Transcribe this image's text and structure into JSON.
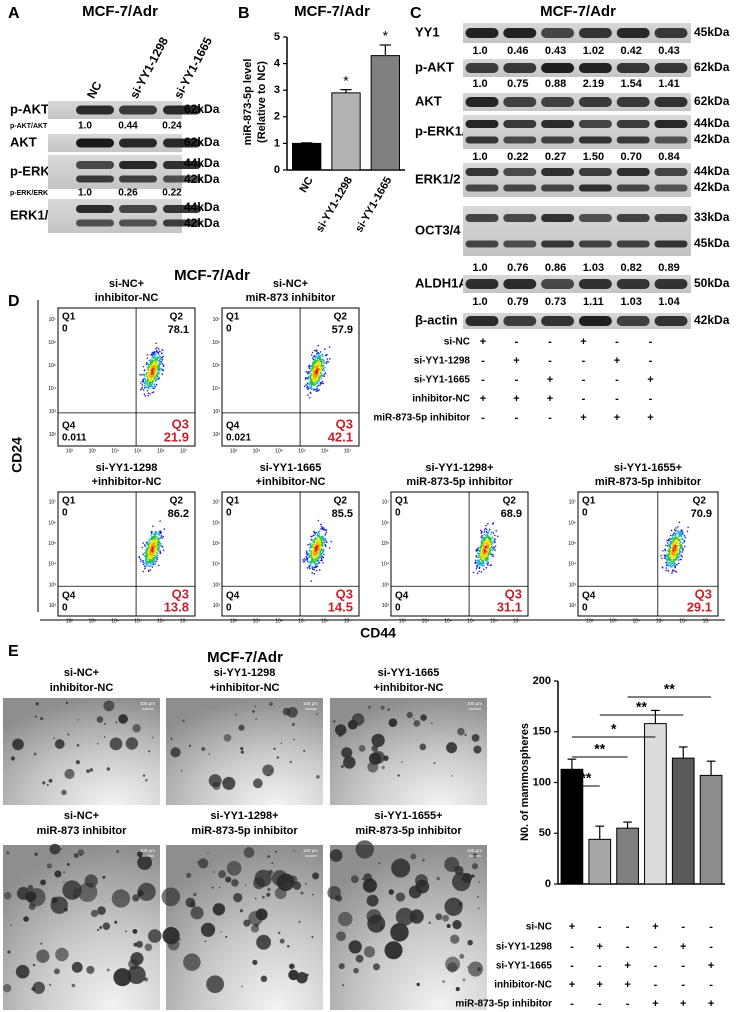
{
  "panel_a": {
    "label": "A",
    "title": "MCF-7/Adr",
    "lanes": [
      "NC",
      "si-YY1-1298",
      "si-YY1-1665"
    ],
    "rows": [
      {
        "name": "p-AKT",
        "markers": [
          "62kDa"
        ]
      },
      {
        "name": "AKT",
        "markers": [
          "62kDa"
        ]
      },
      {
        "name": "p-ERK1/2",
        "markers": [
          "44kDa",
          "42kDa"
        ]
      },
      {
        "name": "ERK1/2",
        "markers": [
          "44kDa",
          "42kDa"
        ]
      }
    ],
    "quant": [
      {
        "name": "p-AKT/AKT",
        "values": [
          "1.0",
          "0.44",
          "0.24"
        ]
      },
      {
        "name": "p-ERK/ERK",
        "values": [
          "1.0",
          "0.26",
          "0.22"
        ]
      }
    ]
  },
  "panel_c": {
    "label": "C",
    "title": "MCF-7/Adr",
    "rows": [
      {
        "name": "YY1",
        "markers": [
          "45kDa"
        ],
        "quant": [
          "1.0",
          "0.46",
          "0.43",
          "1.02",
          "0.42",
          "0.43"
        ]
      },
      {
        "name": "p-AKT",
        "markers": [
          "62kDa"
        ],
        "quant": [
          "1.0",
          "0.75",
          "0.88",
          "2.19",
          "1.54",
          "1.41"
        ]
      },
      {
        "name": "AKT",
        "markers": [
          "62kDa"
        ]
      },
      {
        "name": "p-ERK1/2",
        "markers": [
          "44kDa",
          "42kDa"
        ],
        "quant": [
          "1.0",
          "0.22",
          "0.27",
          "1.50",
          "0.70",
          "0.84"
        ]
      },
      {
        "name": "ERK1/2",
        "markers": [
          "44kDa",
          "42kDa"
        ]
      },
      {
        "name": "OCT3/4",
        "markers": [
          "33kDa",
          "45kDa"
        ],
        "quant": [
          "1.0",
          "0.76",
          "0.86",
          "1.03",
          "0.82",
          "0.89"
        ]
      },
      {
        "name": "ALDH1A1",
        "markers": [
          "50kDa"
        ],
        "quant": [
          "1.0",
          "0.79",
          "0.73",
          "1.11",
          "1.03",
          "1.04"
        ]
      },
      {
        "name": "β-actin",
        "markers": [
          "42kDa"
        ]
      }
    ],
    "conditions": [
      {
        "name": "si-NC",
        "marks": [
          "+",
          "-",
          "-",
          "+",
          "-",
          "-"
        ]
      },
      {
        "name": "si-YY1-1298",
        "marks": [
          "-",
          "+",
          "-",
          "-",
          "+",
          "-"
        ]
      },
      {
        "name": "si-YY1-1665",
        "marks": [
          "-",
          "-",
          "+",
          "-",
          "-",
          "+"
        ]
      },
      {
        "name": "inhibitor-NC",
        "marks": [
          "+",
          "+",
          "+",
          "-",
          "-",
          "-"
        ]
      },
      {
        "name": "miR-873-5p inhibitor",
        "marks": [
          "-",
          "-",
          "-",
          "+",
          "+",
          "+"
        ]
      }
    ]
  },
  "panel_d": {
    "label": "D",
    "title": "MCF-7/Adr",
    "y_label": "CD24",
    "x_label": "CD44",
    "axis_ticks": [
      "10²",
      "10³",
      "10⁴",
      "10⁵",
      "10⁶",
      "10⁷"
    ],
    "quadrant_names": [
      "Q1",
      "Q2",
      "Q3",
      "Q4"
    ],
    "plots": [
      {
        "title": [
          "si-NC+",
          "inhibitor-NC"
        ],
        "values": [
          0,
          78.1,
          21.9,
          0.011
        ]
      },
      {
        "title": [
          "si-NC+",
          "miR-873 inhibitor"
        ],
        "values": [
          0,
          57.9,
          42.1,
          0.021
        ]
      },
      {
        "title": [
          "si-YY1-1298",
          "+inhibitor-NC"
        ],
        "values": [
          0,
          86.2,
          13.8,
          0
        ]
      },
      {
        "title": [
          "si-YY1-1665",
          "+inhibitor-NC"
        ],
        "values": [
          0,
          85.5,
          14.5,
          0
        ]
      },
      {
        "title": [
          "si-YY1-1298+",
          "miR-873-5p inhibitor"
        ],
        "values": [
          0,
          68.9,
          31.1,
          0
        ]
      },
      {
        "title": [
          "si-YY1-1655+",
          "miR-873-5p inhibitor"
        ],
        "values": [
          0,
          70.9,
          29.1,
          0
        ]
      }
    ]
  },
  "panel_e": {
    "label": "E",
    "title": "MCF-7/Adr",
    "scale_label": "100 μm",
    "images": [
      {
        "caption": [
          "si-NC+",
          "inhibitor-NC"
        ]
      },
      {
        "caption": [
          "si-YY1-1298",
          "+inhibitor-NC"
        ]
      },
      {
        "caption": [
          "si-YY1-1665",
          "+inhibitor-NC"
        ]
      },
      {
        "caption": [
          "si-NC+",
          "miR-873 inhibitor"
        ]
      },
      {
        "caption": [
          "si-YY1-1298+",
          "miR-873-5p inhibitor"
        ]
      },
      {
        "caption": [
          "si-YY1-1655+",
          "miR-873-5p inhibitor"
        ]
      }
    ]
  },
  "chart_data": [
    {
      "type": "bar",
      "panel_label": "B",
      "title": "MCF-7/Adr",
      "y_label": [
        "miR-873-5p  level",
        "(Relative to NC)"
      ],
      "categories": [
        "NC",
        "si-YY1-1298",
        "si-YY1-1665"
      ],
      "values": [
        1.0,
        2.9,
        4.3
      ],
      "errors": [
        0.02,
        0.12,
        0.4
      ],
      "colors": [
        "#000000",
        "#b3b3b3",
        "#808080"
      ],
      "ylim": [
        0,
        5
      ],
      "yticks": [
        0,
        1,
        2,
        3,
        4,
        5
      ],
      "annotations": [
        "*",
        "*"
      ]
    },
    {
      "type": "bar",
      "y_label": "N0. of mammospheres",
      "categories": [
        null,
        null,
        null,
        null,
        null,
        null
      ],
      "values": [
        113,
        44,
        55,
        158,
        124,
        107
      ],
      "errors": [
        10,
        13,
        6,
        13,
        11,
        14
      ],
      "colors": [
        "#000000",
        "#a6a6a6",
        "#808080",
        "#dcdcdc",
        "#595959",
        "#8c8c8c"
      ],
      "ylim": [
        0,
        200
      ],
      "yticks": [
        0,
        50,
        100,
        150,
        200
      ],
      "annotations": [
        "**",
        "**",
        "*",
        "**",
        "**"
      ],
      "conditions": [
        {
          "name": "si-NC",
          "marks": [
            "+",
            "-",
            "-",
            "+",
            "-",
            "-"
          ]
        },
        {
          "name": "si-YY1-1298",
          "marks": [
            "-",
            "+",
            "-",
            "-",
            "+",
            "-"
          ]
        },
        {
          "name": "si-YY1-1665",
          "marks": [
            "-",
            "-",
            "+",
            "-",
            "-",
            "+"
          ]
        },
        {
          "name": "inhibitor-NC",
          "marks": [
            "+",
            "+",
            "+",
            "-",
            "-",
            "-"
          ]
        },
        {
          "name": "miR-873-5p inhibitor",
          "marks": [
            "-",
            "-",
            "-",
            "+",
            "+",
            "+"
          ]
        }
      ]
    }
  ]
}
